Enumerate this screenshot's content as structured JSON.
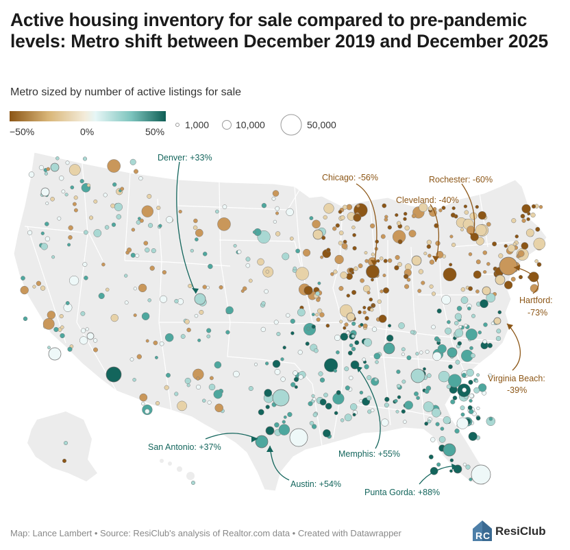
{
  "title": "Active housing inventory for sale compared to pre-pandemic levels: Metro shift between December 2019 and December 2025",
  "subtitle": "Metro sized by number of active listings for sale",
  "color_legend": {
    "min_label": "−50%",
    "mid_label": "0%",
    "max_label": "50%",
    "colors": [
      "#8c5616",
      "#d9b678",
      "#f3ebd9",
      "#e6f6f6",
      "#7cc4bd",
      "#0f5e55"
    ]
  },
  "size_legend": {
    "labels": [
      "1,000",
      "10,000",
      "50,000"
    ],
    "listing_counts": [
      1000,
      10000,
      50000
    ]
  },
  "colors": {
    "decline_strong": "#8c5616",
    "decline_mid": "#c9975a",
    "decline_light": "#e7d2a8",
    "neutral": "#eef8f8",
    "growth_light": "#a9d8d3",
    "growth_mid": "#4ea79e",
    "growth_strong": "#13655c",
    "land": "#ececec",
    "border": "#ffffff"
  },
  "annotations": [
    {
      "id": "denver",
      "label": "Denver: +33%",
      "change_pct": 33
    },
    {
      "id": "chicago",
      "label": "Chicago: -56%",
      "change_pct": -56
    },
    {
      "id": "rochester",
      "label": "Rochester: -60%",
      "change_pct": -60
    },
    {
      "id": "cleveland",
      "label": "Cleveland: -40%",
      "change_pct": -40
    },
    {
      "id": "hartford",
      "label": "Hartford:",
      "label2": "-73%",
      "change_pct": -73
    },
    {
      "id": "virginia_beach",
      "label": "Virginia Beach:",
      "label2": "-39%",
      "change_pct": -39
    },
    {
      "id": "san_antonio",
      "label": "San Antonio: +37%",
      "change_pct": 37
    },
    {
      "id": "memphis",
      "label": "Memphis: +55%",
      "change_pct": 55
    },
    {
      "id": "austin",
      "label": "Austin: +54%",
      "change_pct": 54
    },
    {
      "id": "punta_gorda",
      "label": "Punta Gorda: +88%",
      "change_pct": 88
    }
  ],
  "footer": "Map: Lance Lambert • Source: ResiClub's analysis of Realtor.com data • Created with Datawrapper",
  "logo": {
    "mark": "RC",
    "text": "ResiClub"
  }
}
